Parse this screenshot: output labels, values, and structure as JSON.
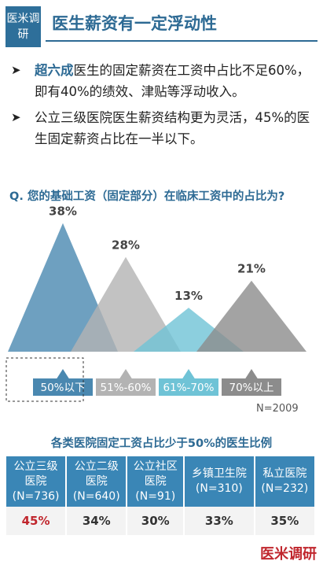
{
  "header": {
    "logo_text": "医米调研",
    "title": "医生薪资有一定浮动性"
  },
  "bullets": [
    {
      "strong": "超六成",
      "text": "医生的固定薪资在工资中占比不足60%，即有40%的绩效、津贴等浮动收入。"
    },
    {
      "strong": "",
      "text": "公立三级医院医生薪资结构更为灵活，45%的医生固定薪资占比在一半以下。"
    }
  ],
  "question": "Q. 您的基础工资（固定部分）在临床工资中的占比为?",
  "sample_size": "N=2009",
  "colors": {
    "accent": "#2d6a94",
    "blue": "#4a88b0",
    "grey": "#aaaaaa",
    "teal": "#6fc3d6",
    "dark_grey": "#8c8c8c",
    "highlight_red": "#c0262d"
  },
  "chart_data": {
    "type": "area",
    "categories": [
      "50%以下",
      "51%-60%",
      "61%-70%",
      "70%以上"
    ],
    "values": [
      38,
      28,
      13,
      21
    ],
    "value_labels": [
      "38%",
      "28%",
      "13%",
      "21%"
    ],
    "series_colors": [
      "#4a88b0",
      "#b3b3b3",
      "#6fc3d6",
      "#8c8c8c"
    ]
  },
  "table": {
    "title": "各类医院固定工资占比少于50%的医生比例",
    "headers": [
      "公立三级医院(N=736)",
      "公立二级医院(N=640)",
      "公立社区医院(N=91)",
      "乡镇卫生院(N=310)",
      "私立医院(N=232)"
    ],
    "header_lines": [
      [
        "公立三级",
        "医院",
        "(N=736)"
      ],
      [
        "公立二级",
        "医院",
        "(N=640)"
      ],
      [
        "公立社区",
        "医院",
        "(N=91)"
      ],
      [
        "乡镇卫生院",
        "(N=310)"
      ],
      [
        "私立医院",
        "(N=232)"
      ]
    ],
    "values": [
      "45%",
      "34%",
      "30%",
      "33%",
      "35%"
    ]
  },
  "footer": {
    "logo_text": "医米调研"
  }
}
